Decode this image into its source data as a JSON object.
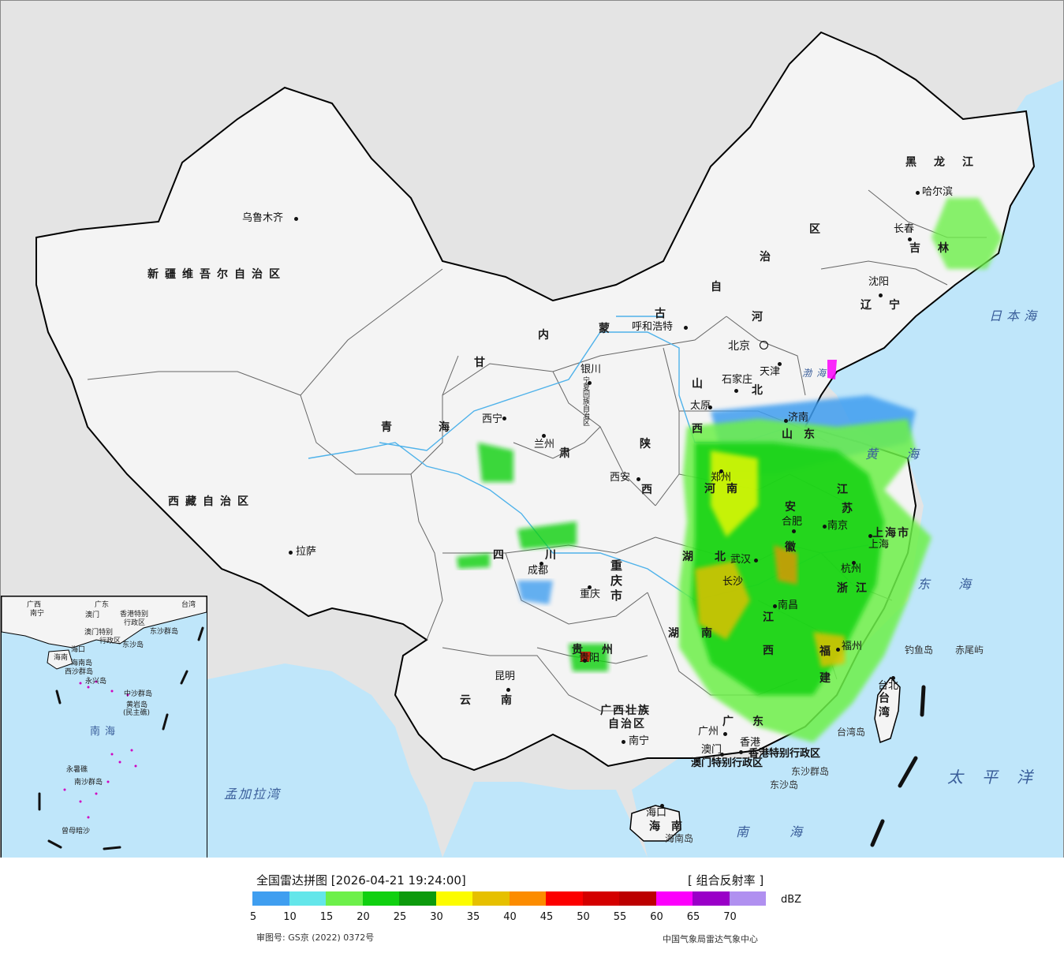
{
  "map": {
    "cities": [
      {
        "id": "urumqi",
        "name": "乌鲁木齐"
      },
      {
        "id": "lhasa",
        "name": "拉萨"
      },
      {
        "id": "xining",
        "name": "西宁"
      },
      {
        "id": "lanzhou",
        "name": "兰州"
      },
      {
        "id": "yinchuan",
        "name": "银川"
      },
      {
        "id": "hohhot",
        "name": "呼和浩特"
      },
      {
        "id": "beijing",
        "name": "北京"
      },
      {
        "id": "tianjin",
        "name": "天津"
      },
      {
        "id": "shijiazhuang",
        "name": "石家庄"
      },
      {
        "id": "taiyuan",
        "name": "太原"
      },
      {
        "id": "jinan",
        "name": "济南"
      },
      {
        "id": "zhengzhou",
        "name": "郑州"
      },
      {
        "id": "xian",
        "name": "西安"
      },
      {
        "id": "hefei",
        "name": "合肥"
      },
      {
        "id": "nanjing",
        "name": "南京"
      },
      {
        "id": "shanghai",
        "name": "上海"
      },
      {
        "id": "hangzhou",
        "name": "杭州"
      },
      {
        "id": "wuhan",
        "name": "武汉"
      },
      {
        "id": "chengdu",
        "name": "成都"
      },
      {
        "id": "chongqing",
        "name": "重庆"
      },
      {
        "id": "guiyang",
        "name": "贵阳"
      },
      {
        "id": "kunming",
        "name": "昆明"
      },
      {
        "id": "changsha",
        "name": "长沙"
      },
      {
        "id": "nanchang",
        "name": "南昌"
      },
      {
        "id": "fuzhou",
        "name": "福州"
      },
      {
        "id": "taipei",
        "name": "台北"
      },
      {
        "id": "guangzhou",
        "name": "广州"
      },
      {
        "id": "nanning",
        "name": "南宁"
      },
      {
        "id": "macau",
        "name": "澳门"
      },
      {
        "id": "hongkong",
        "name": "香港"
      },
      {
        "id": "haikou",
        "name": "海口"
      },
      {
        "id": "shenyang",
        "name": "沈阳"
      },
      {
        "id": "changchun",
        "name": "长春"
      },
      {
        "id": "harbin",
        "name": "哈尔滨"
      }
    ],
    "provinces": [
      {
        "id": "xinjiang",
        "name": "新疆维吾尔自治区"
      },
      {
        "id": "xizang",
        "name": "西藏自治区"
      },
      {
        "id": "qinghai-a",
        "name": "青"
      },
      {
        "id": "qinghai-b",
        "name": "海"
      },
      {
        "id": "gansu-a",
        "name": "甘"
      },
      {
        "id": "gansu-b",
        "name": "肃"
      },
      {
        "id": "neimenggu-1",
        "name": "内"
      },
      {
        "id": "neimenggu-2",
        "name": "蒙"
      },
      {
        "id": "neimenggu-3",
        "name": "古"
      },
      {
        "id": "neimenggu-4",
        "name": "自"
      },
      {
        "id": "neimenggu-5",
        "name": "治"
      },
      {
        "id": "neimenggu-6",
        "name": "区"
      },
      {
        "id": "heilongjiang",
        "name": "黑龙江"
      },
      {
        "id": "jilin",
        "name": "吉林"
      },
      {
        "id": "liaoning",
        "name": "辽宁"
      },
      {
        "id": "hebei-a",
        "name": "河"
      },
      {
        "id": "hebei-b",
        "name": "北"
      },
      {
        "id": "shanxi-a",
        "name": "山"
      },
      {
        "id": "shanxi-b",
        "name": "西"
      },
      {
        "id": "shandong",
        "name": "山东"
      },
      {
        "id": "shaanxi-a",
        "name": "陕"
      },
      {
        "id": "shaanxi-b",
        "name": "西"
      },
      {
        "id": "henan",
        "name": "河南"
      },
      {
        "id": "jiangsu-a",
        "name": "江"
      },
      {
        "id": "jiangsu-b",
        "name": "苏"
      },
      {
        "id": "anhui-a",
        "name": "安"
      },
      {
        "id": "anhui-b",
        "name": "徽"
      },
      {
        "id": "shanghaishi",
        "name": "上海市"
      },
      {
        "id": "zhejiang",
        "name": "浙江"
      },
      {
        "id": "hubei-a",
        "name": "湖"
      },
      {
        "id": "hubei-b",
        "name": "北"
      },
      {
        "id": "sichuan",
        "name": "四川"
      },
      {
        "id": "chongqingshi",
        "name": "重庆市"
      },
      {
        "id": "guizhou",
        "name": "贵州"
      },
      {
        "id": "yunnan",
        "name": "云南"
      },
      {
        "id": "hunan-a",
        "name": "湖"
      },
      {
        "id": "hunan-b",
        "name": "南"
      },
      {
        "id": "jiangxi-a",
        "name": "江"
      },
      {
        "id": "jiangxi-b",
        "name": "西"
      },
      {
        "id": "fujian-a",
        "name": "福"
      },
      {
        "id": "fujian-b",
        "name": "建"
      },
      {
        "id": "taiwan",
        "name": "台湾"
      },
      {
        "id": "guangdong",
        "name": "广东"
      },
      {
        "id": "guangxi-a",
        "name": "广西壮族"
      },
      {
        "id": "guangxi-b",
        "name": "自治区"
      },
      {
        "id": "hainan",
        "name": "海南"
      },
      {
        "id": "ningxia",
        "name": "宁夏回族自治区"
      },
      {
        "id": "hk-sar",
        "name": "香港特别行政区"
      },
      {
        "id": "mo-sar",
        "name": "澳门特别行政区"
      }
    ],
    "seas": [
      {
        "id": "japan-sea",
        "name": "日本海"
      },
      {
        "id": "bohai",
        "name": "渤海"
      },
      {
        "id": "yellow-sea",
        "name": "黄海"
      },
      {
        "id": "east-sea",
        "name": "东海"
      },
      {
        "id": "pacific",
        "name": "太平洋"
      },
      {
        "id": "south-sea",
        "name": "南海"
      },
      {
        "id": "bengal",
        "name": "孟加拉湾"
      }
    ],
    "islands": [
      {
        "id": "diaoyu",
        "name": "钓鱼岛"
      },
      {
        "id": "chiwei",
        "name": "赤尾屿"
      },
      {
        "id": "taiwan-dao",
        "name": "台湾岛"
      },
      {
        "id": "dongsha-qd",
        "name": "东沙群岛"
      },
      {
        "id": "dongsha-d",
        "name": "东沙岛"
      },
      {
        "id": "hainan-dao",
        "name": "海南岛"
      }
    ],
    "inset": {
      "labels": [
        "广西",
        "南宁",
        "广东",
        "澳门",
        "香港特别",
        "行政区",
        "台湾",
        "澳门特别",
        "行政区",
        "东沙群岛",
        "东沙岛",
        "海口",
        "海南",
        "海南岛",
        "西沙群岛",
        "永兴岛",
        "中沙群岛",
        "黄岩岛",
        "(民主礁)",
        "南海",
        "永暑礁",
        "南沙群岛",
        "曾母暗沙"
      ]
    },
    "colors": {
      "land": "#f4f4f4",
      "outside": "#e4e4e4",
      "water": "#bfe6fa",
      "border": "#000000"
    }
  },
  "legend": {
    "title": "全国雷达拼图 [2026-04-21 19:24:00]",
    "product": "[ 组合反射率 ]",
    "unit": "dBZ",
    "ticks": [
      "5",
      "10",
      "15",
      "20",
      "25",
      "30",
      "35",
      "40",
      "45",
      "50",
      "55",
      "60",
      "65",
      "70"
    ],
    "colors": [
      "#3f9ef0",
      "#64e6ea",
      "#6df04a",
      "#10d010",
      "#0c9a0c",
      "#fcfc00",
      "#e6c000",
      "#fc8c00",
      "#fc0000",
      "#d40000",
      "#bc0000",
      "#fc00fc",
      "#9a00c8",
      "#b090f0"
    ],
    "credit": "审图号: GS京 (2022) 0372号",
    "source": "中国气象局雷达气象中心"
  }
}
